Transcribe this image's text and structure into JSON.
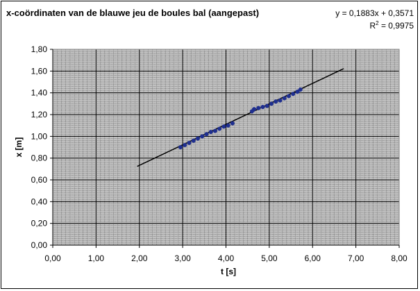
{
  "chart_data": {
    "type": "scatter",
    "title": "x-coördinaten van de blauwe jeu de boules bal (aangepast)",
    "xlabel": "t [s]",
    "ylabel": "x [m]",
    "xlim": [
      0,
      8
    ],
    "ylim": [
      0,
      1.8
    ],
    "x_ticks": [
      "0,00",
      "1,00",
      "2,00",
      "3,00",
      "4,00",
      "5,00",
      "6,00",
      "7,00",
      "8,00"
    ],
    "y_ticks": [
      "0,00",
      "0,20",
      "0,40",
      "0,60",
      "0,80",
      "1,00",
      "1,20",
      "1,40",
      "1,60",
      "1,80"
    ],
    "grid": true,
    "plot_background": "#c0c0c0",
    "series": [
      {
        "color": "#1f2f8f",
        "x": [
          2.95,
          3.05,
          3.15,
          3.25,
          3.35,
          3.45,
          3.55,
          3.65,
          3.75,
          3.85,
          3.95,
          4.05,
          4.15,
          4.6,
          4.65,
          4.75,
          4.85,
          4.95,
          5.05,
          5.15,
          5.25,
          5.35,
          5.45,
          5.55,
          5.65,
          5.72
        ],
        "values": [
          0.9,
          0.92,
          0.94,
          0.96,
          0.98,
          1.0,
          1.02,
          1.04,
          1.05,
          1.07,
          1.09,
          1.1,
          1.12,
          1.23,
          1.25,
          1.26,
          1.27,
          1.28,
          1.3,
          1.32,
          1.33,
          1.35,
          1.37,
          1.39,
          1.41,
          1.43
        ]
      }
    ],
    "trendline": {
      "color": "#000000",
      "slope": 0.1883,
      "intercept": 0.3571,
      "x_range": [
        1.95,
        6.72
      ]
    },
    "annotation": {
      "equation": "y = 0,1883x + 0,3571",
      "r2_prefix": "R",
      "r2_sup": "2",
      "r2_value": " = 0,9975"
    }
  }
}
